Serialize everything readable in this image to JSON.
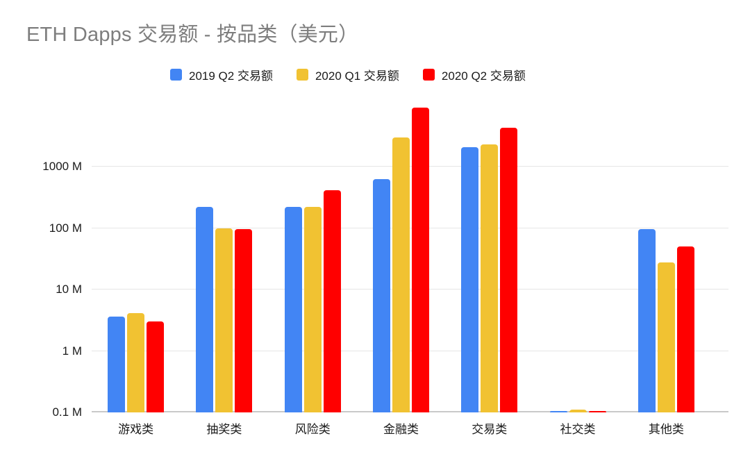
{
  "title": "ETH Dapps 交易额 - 按品类（美元）",
  "chart_data": {
    "type": "bar",
    "scale": "log",
    "unit": "M (million USD)",
    "title": "ETH Dapps 交易额 - 按品类（美元）",
    "categories": [
      "游戏类",
      "抽奖类",
      "风险类",
      "金融类",
      "交易类",
      "社交类",
      "其他类"
    ],
    "series": [
      {
        "name": "2019 Q2 交易额",
        "color": "#4285F4",
        "values": [
          3.6,
          225,
          222,
          640,
          2100,
          0.1,
          97
        ]
      },
      {
        "name": "2020 Q1 交易额",
        "color": "#F1C232",
        "values": [
          4.1,
          100,
          222,
          3000,
          2300,
          0.11,
          28
        ]
      },
      {
        "name": "2020 Q2 交易额",
        "color": "#FF0000",
        "values": [
          3.0,
          96,
          415,
          9200,
          4300,
          0.1,
          50
        ]
      }
    ],
    "y_ticks": [
      "0.1 M",
      "1 M",
      "10 M",
      "100 M",
      "1000 M"
    ],
    "ylim": [
      0.1,
      10000
    ],
    "grid": true,
    "legend_position": "top"
  },
  "colors": {
    "background": "#ffffff",
    "title_text": "#7e7e7e",
    "axis_text": "#1a1a1a",
    "gridline": "#e6e6e6",
    "baseline": "#c9c9c9",
    "series_blue": "#4285F4",
    "series_yellow": "#F1C232",
    "series_red": "#FF0000"
  }
}
